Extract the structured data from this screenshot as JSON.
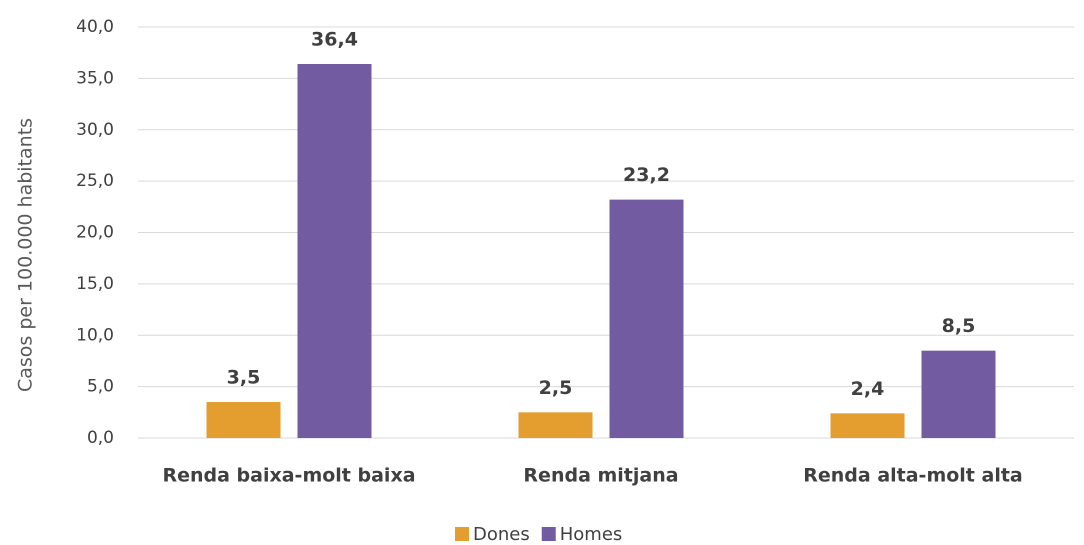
{
  "chart_data": {
    "type": "bar",
    "y_label": "Casos per 100.000 habitants",
    "categories": [
      "Renda baixa-molt baixa",
      "Renda mitjana",
      "Renda alta-molt alta"
    ],
    "series": [
      {
        "name": "Dones",
        "color": "#e49e2f",
        "values": [
          3.5,
          2.5,
          2.4
        ],
        "value_labels": [
          "3,5",
          "2,5",
          "2,4"
        ]
      },
      {
        "name": "Homes",
        "color": "#735ba1",
        "values": [
          36.4,
          23.2,
          8.5
        ],
        "value_labels": [
          "36,4",
          "23,2",
          "8,5"
        ]
      }
    ],
    "ylim": [
      0,
      40
    ],
    "yticks": [
      {
        "value": 0,
        "label": "0,0"
      },
      {
        "value": 5,
        "label": "5,0"
      },
      {
        "value": 10,
        "label": "10,0"
      },
      {
        "value": 15,
        "label": "15,0"
      },
      {
        "value": 20,
        "label": "20,0"
      },
      {
        "value": 25,
        "label": "25,0"
      },
      {
        "value": 30,
        "label": "30,0"
      },
      {
        "value": 35,
        "label": "35,0"
      },
      {
        "value": 40,
        "label": "40,0"
      }
    ],
    "grid": true,
    "legend": "bottom"
  }
}
